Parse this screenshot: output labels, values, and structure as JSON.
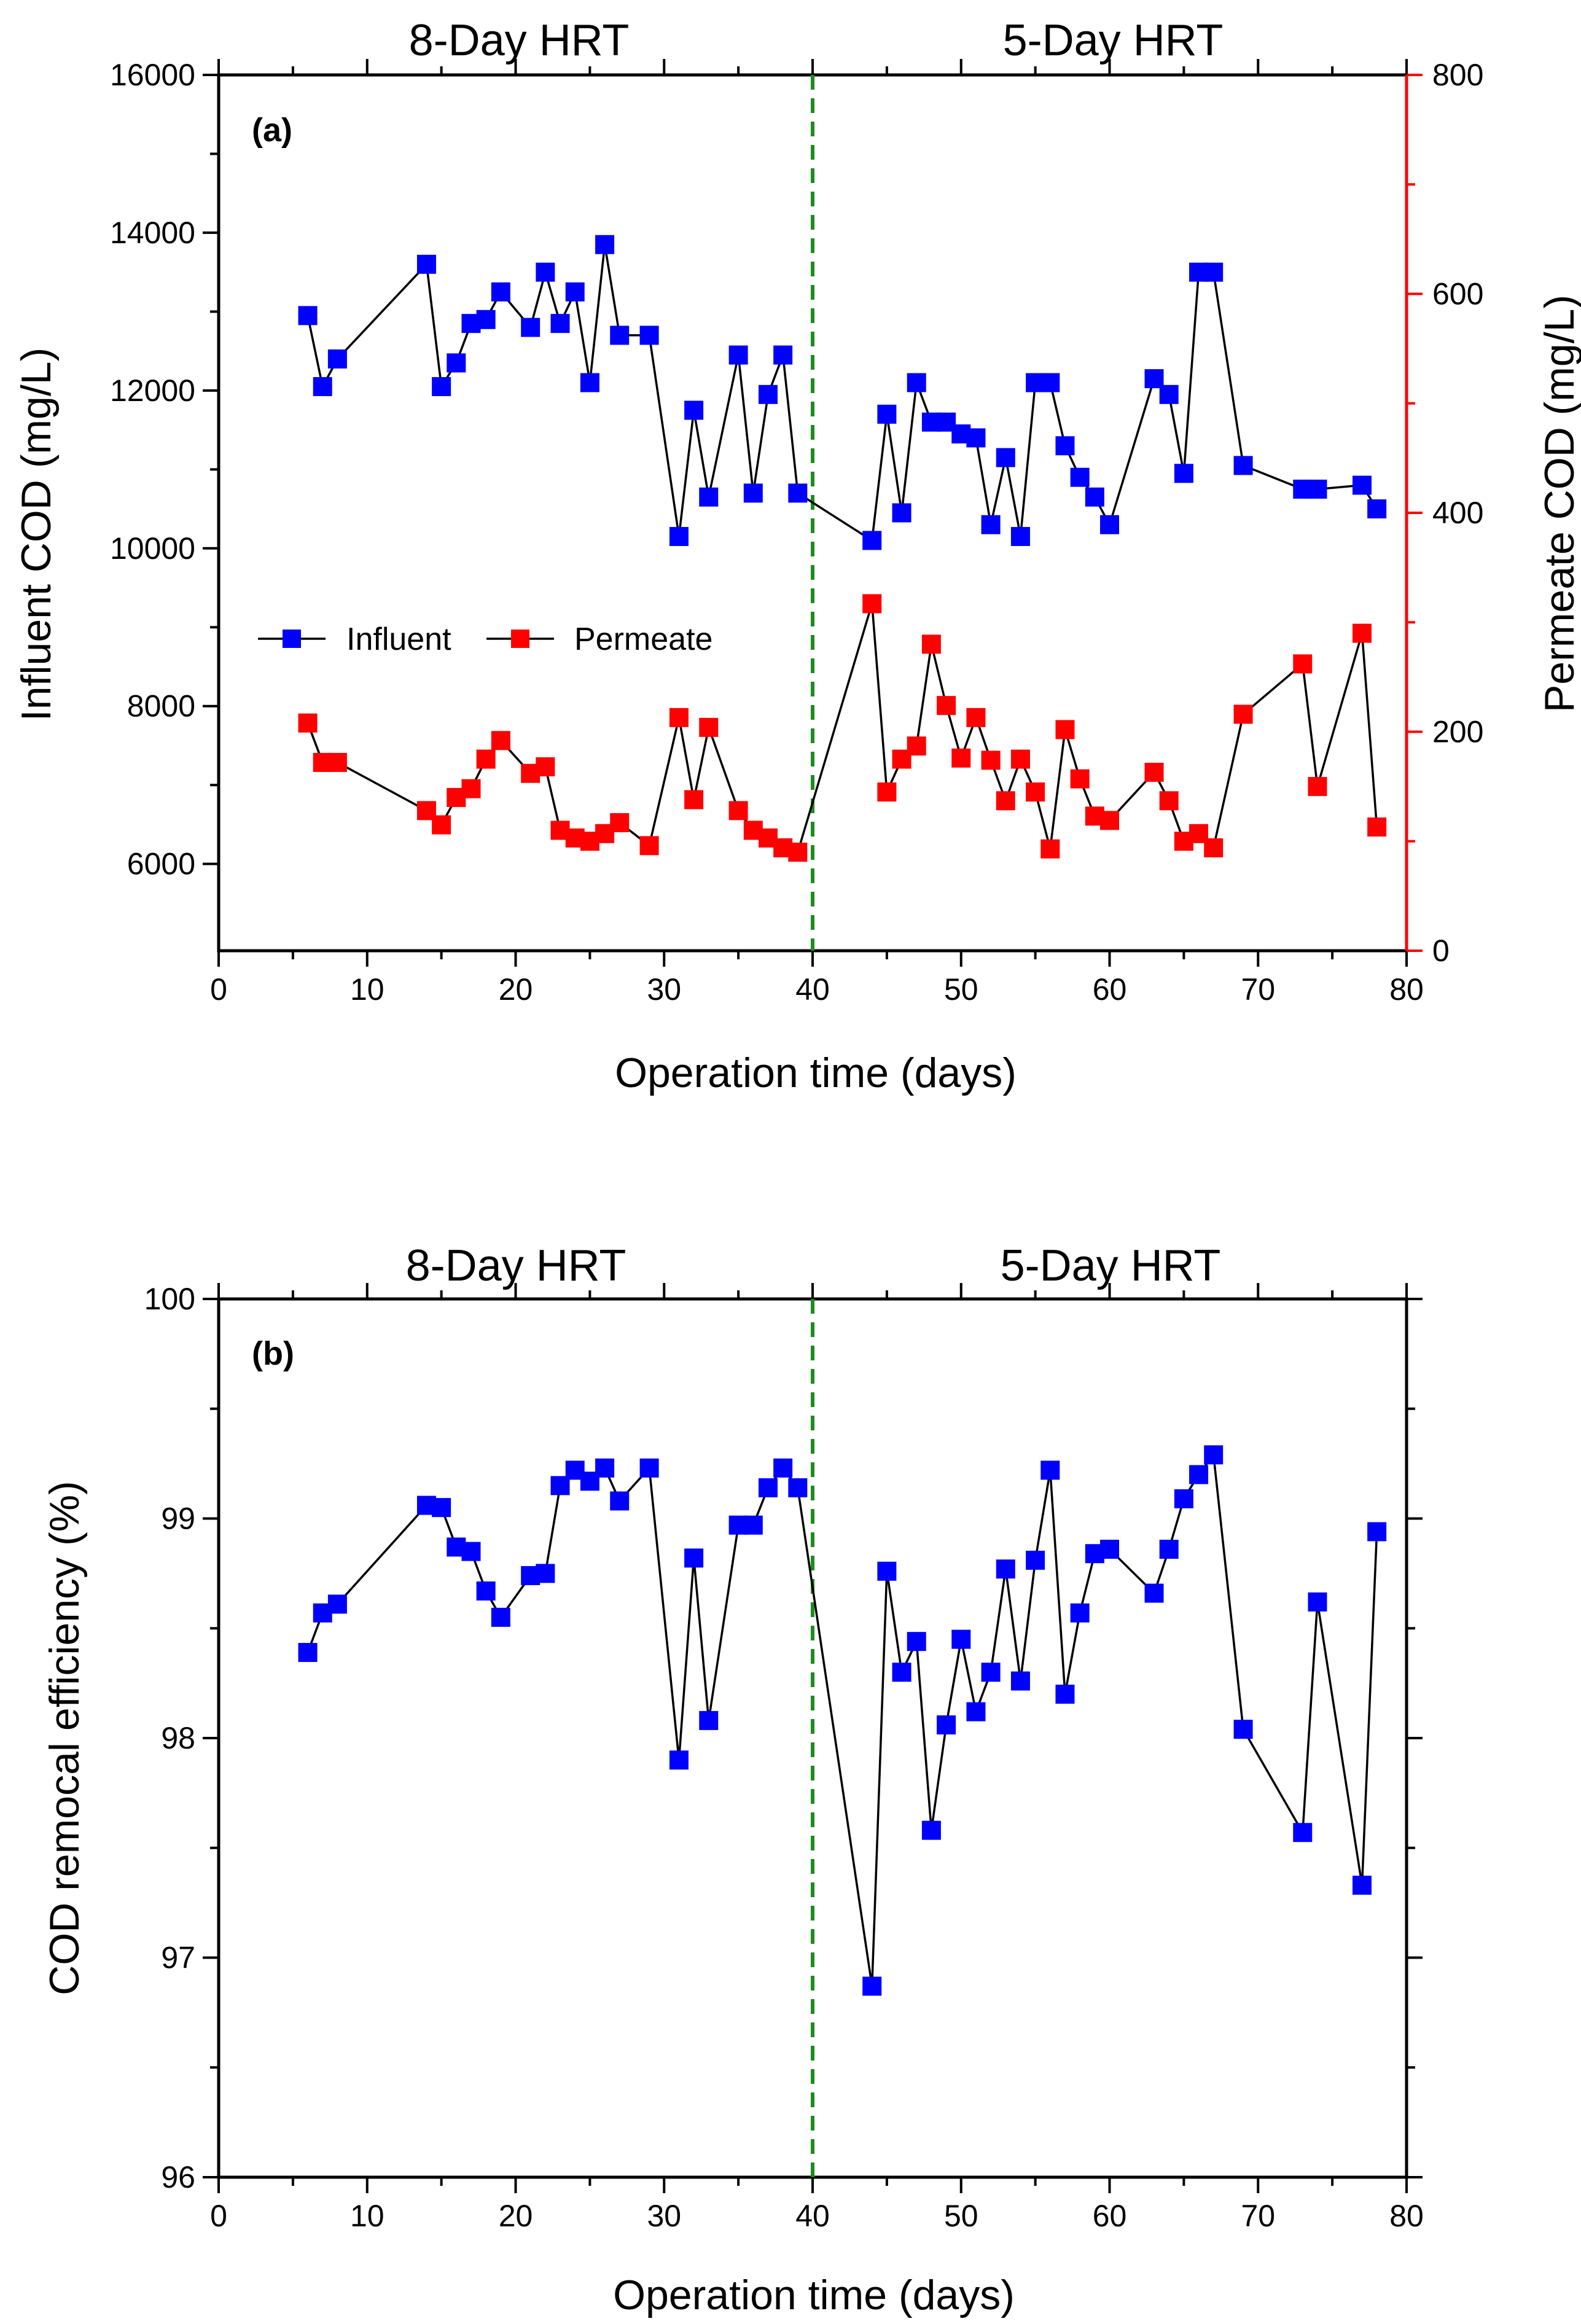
{
  "chart_data": [
    {
      "type": "line",
      "panel_label": "(a)",
      "xlabel": "Operation time (days)",
      "ylabel": "Influent COD (mg/L)",
      "y2label": "Permeate COD (mg/L)",
      "xlim": [
        0,
        80
      ],
      "ylim": [
        4900,
        16000
      ],
      "y2lim": [
        0,
        800
      ],
      "xticks": [
        0,
        10,
        20,
        30,
        40,
        50,
        60,
        70,
        80
      ],
      "yticks": [
        6000,
        8000,
        10000,
        12000,
        14000,
        16000
      ],
      "y2ticks": [
        0,
        200,
        400,
        600,
        800
      ],
      "divider_x": 40,
      "section_labels": [
        "8-Day HRT",
        "5-Day HRT"
      ],
      "legend_position": "left",
      "colors": {
        "influent": "#0000ff",
        "permeate": "#ff0000",
        "divider": "#1e8c1e",
        "axis2": "#ff0000"
      },
      "series": [
        {
          "name": "Influent",
          "axis": "left",
          "x": [
            6,
            7,
            8,
            14,
            15,
            16,
            17,
            18,
            19,
            21,
            22,
            23,
            24,
            25,
            26,
            27,
            29,
            31,
            32,
            33,
            35,
            36,
            37,
            38,
            39,
            44,
            45,
            46,
            47,
            48,
            49,
            50,
            51,
            52,
            53,
            54,
            55,
            56,
            57,
            58,
            59,
            60,
            63,
            64,
            65,
            66,
            67,
            69,
            73,
            74,
            77,
            78
          ],
          "values": [
            12950,
            12050,
            12400,
            13600,
            12050,
            12350,
            12850,
            12900,
            13250,
            12800,
            13500,
            12850,
            13250,
            12100,
            13850,
            12700,
            12700,
            10150,
            11750,
            10650,
            12450,
            10700,
            11950,
            12450,
            10700,
            10100,
            11700,
            10450,
            12100,
            11600,
            11600,
            11450,
            11400,
            10300,
            11150,
            10150,
            12100,
            12100,
            11300,
            10900,
            10650,
            10300,
            12150,
            11950,
            10950,
            13500,
            13500,
            11050,
            10750,
            10750,
            10800,
            10500
          ]
        },
        {
          "name": "Permeate",
          "axis": "right",
          "x": [
            6,
            7,
            8,
            14,
            15,
            16,
            17,
            18,
            19,
            21,
            22,
            23,
            24,
            25,
            26,
            27,
            29,
            31,
            32,
            33,
            35,
            36,
            37,
            38,
            39,
            44,
            45,
            46,
            47,
            48,
            49,
            50,
            51,
            52,
            53,
            54,
            55,
            56,
            57,
            58,
            59,
            60,
            63,
            64,
            65,
            66,
            67,
            69,
            73,
            74,
            77,
            78
          ],
          "values": [
            208,
            172,
            172,
            128,
            115,
            140,
            148,
            175,
            192,
            162,
            168,
            110,
            103,
            100,
            107,
            117,
            96,
            213,
            138,
            204,
            128,
            110,
            103,
            94,
            90,
            317,
            145,
            175,
            187,
            280,
            224,
            176,
            213,
            174,
            137,
            175,
            145,
            93,
            202,
            157,
            123,
            119,
            163,
            137,
            100,
            107,
            94,
            216,
            262,
            150,
            290,
            113
          ]
        }
      ]
    },
    {
      "type": "line",
      "panel_label": "(b)",
      "xlabel": "Operation time (days)",
      "ylabel": "COD remocal efficiency (%)",
      "xlim": [
        0,
        80
      ],
      "ylim": [
        96,
        100
      ],
      "xticks": [
        0,
        10,
        20,
        30,
        40,
        50,
        60,
        70,
        80
      ],
      "yticks": [
        96,
        97,
        98,
        99,
        100
      ],
      "divider_x": 40,
      "section_labels": [
        "8-Day HRT",
        "5-Day HRT"
      ],
      "colors": {
        "efficiency": "#0000ff",
        "divider": "#1e8c1e"
      },
      "series": [
        {
          "name": "COD removal efficiency",
          "axis": "left",
          "x": [
            6,
            7,
            8,
            14,
            15,
            16,
            17,
            18,
            19,
            21,
            22,
            23,
            24,
            25,
            26,
            27,
            29,
            31,
            32,
            33,
            35,
            36,
            37,
            38,
            39,
            44,
            45,
            46,
            47,
            48,
            49,
            50,
            51,
            52,
            53,
            54,
            55,
            56,
            57,
            58,
            59,
            60,
            63,
            64,
            65,
            66,
            67,
            69,
            73,
            74,
            77,
            78
          ],
          "values": [
            98.39,
            98.57,
            98.61,
            99.06,
            99.05,
            98.87,
            98.85,
            98.67,
            98.55,
            98.74,
            98.75,
            99.15,
            99.22,
            99.17,
            99.23,
            99.08,
            99.23,
            97.9,
            98.82,
            98.08,
            98.97,
            98.97,
            99.14,
            99.23,
            99.14,
            96.87,
            98.76,
            98.3,
            98.44,
            97.58,
            98.06,
            98.45,
            98.12,
            98.3,
            98.77,
            98.26,
            98.81,
            99.22,
            98.2,
            98.57,
            98.84,
            98.86,
            98.66,
            98.86,
            99.09,
            99.2,
            99.29,
            98.04,
            97.57,
            98.62,
            97.33,
            98.94
          ]
        }
      ]
    }
  ]
}
